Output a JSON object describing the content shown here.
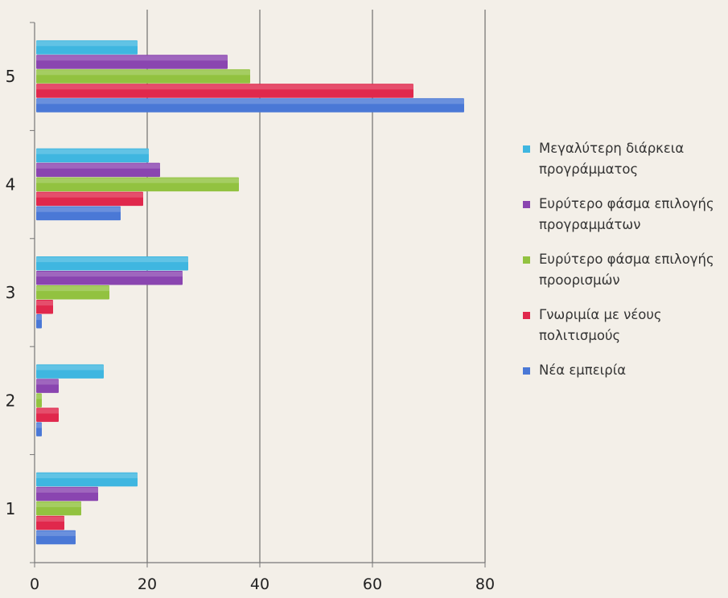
{
  "chart_data": {
    "type": "bar",
    "orientation": "horizontal",
    "categories": [
      "1",
      "2",
      "3",
      "4",
      "5"
    ],
    "series": [
      {
        "name": "Μεγαλύτερη διάρκεια προγράμματος",
        "color": "#3fb6e0",
        "values": [
          18,
          12,
          27,
          20,
          18
        ]
      },
      {
        "name": "Ευρύτερο φάσμα επιλογής προγραμμάτων",
        "color": "#8a45b0",
        "values": [
          11,
          4,
          26,
          22,
          34
        ]
      },
      {
        "name": "Ευρύτερο φάσμα επιλογής προορισμών",
        "color": "#92c240",
        "values": [
          8,
          1,
          13,
          36,
          38
        ]
      },
      {
        "name": "Γνωριμία με νέους πολιτισμούς",
        "color": "#e0284c",
        "values": [
          5,
          4,
          3,
          19,
          67
        ]
      },
      {
        "name": "Νέα εμπειρία",
        "color": "#4a78d6",
        "values": [
          7,
          1,
          1,
          15,
          76
        ]
      }
    ],
    "xlim": [
      0,
      80
    ],
    "x_ticks": [
      "0",
      "20",
      "40",
      "60",
      "80"
    ],
    "grid": "vertical",
    "legend": "right"
  },
  "legend": {
    "items": [
      {
        "line1": "Μεγαλύτερη διάρκεια",
        "line2": "προγράμματος"
      },
      {
        "line1": "Ευρύτερο φάσμα επιλογής",
        "line2": "προγραμμάτων"
      },
      {
        "line1": "Ευρύτερο φάσμα επιλογής",
        "line2": "προορισμών"
      },
      {
        "line1": "Γνωριμία με νέους",
        "line2": "πολιτισμούς"
      },
      {
        "line1": "Νέα εμπειρία",
        "line2": ""
      }
    ]
  }
}
